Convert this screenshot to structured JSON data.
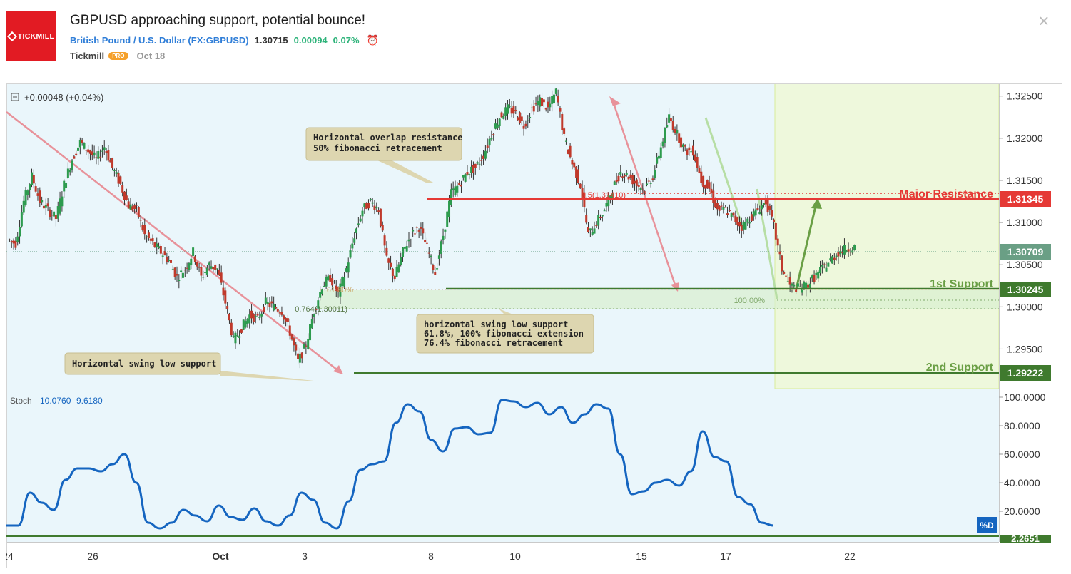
{
  "header": {
    "logo_text": "TICKMILL",
    "title": "GBPUSD approaching support, potential bounce!",
    "symbol_name": "British Pound / U.S. Dollar",
    "symbol_ticker": "FX:GBPUSD",
    "price": "1.30715",
    "change": "0.00094",
    "change_pct": "0.07%",
    "author": "Tickmill",
    "author_badge": "PRO",
    "date": "Oct 18",
    "close_icon": "close-icon",
    "alarm_icon": "alarm-clock-icon"
  },
  "legend": {
    "change_text": "+0.00048 (+0.04%)",
    "stoch_label": "Stoch",
    "stoch_k": "10.0760",
    "stoch_d": "9.6180",
    "pd_label": "%D"
  },
  "colors": {
    "background": "#eaf6fb",
    "forecast_zone": "#eef8dc",
    "resistance": "#e53935",
    "support": "#3f7a2e",
    "candle_up": "#2d9b4e",
    "candle_down": "#c0392b",
    "stoch_line": "#1565c0"
  },
  "annotations": {
    "resistance_note_1": "Horizontal overlap resistance",
    "resistance_note_2": "50% fibonacci retracement",
    "support1_note_1": "horizontal swing low support",
    "support1_note_2": "61.8%, 100% fibonacci extension",
    "support1_note_3": "76.4% fibonacci retracement",
    "support2_note": "Horizontal swing low support",
    "major_resistance": "Major Resistance",
    "first_support": "1st Support",
    "second_support": "2nd Support",
    "fib_50": "0.5(1.31410)",
    "fib_618": "61.80%",
    "fib_764": "0.764(1.30011)",
    "fib_100": "100.00%"
  },
  "chart_data": {
    "type": "candlestick",
    "symbol": "GBPUSD",
    "price_axis": [
      "1.32500",
      "1.32000",
      "1.31500",
      "1.31000",
      "1.30500",
      "1.30000",
      "1.29500"
    ],
    "price_axis_values": [
      1.325,
      1.32,
      1.315,
      1.31,
      1.305,
      1.3,
      1.295
    ],
    "ylim": [
      1.2903,
      1.3265
    ],
    "date_axis": [
      "24",
      "26",
      "Oct",
      "3",
      "8",
      "10",
      "15",
      "17",
      "22"
    ],
    "levels": {
      "major_resistance": 1.31345,
      "first_support": 1.30245,
      "second_support": 1.29222,
      "current_price": 1.30709
    },
    "level_labels": {
      "major_resistance": "1.31345",
      "first_support": "1.30245",
      "second_support": "1.29222",
      "current_price": "1.30709"
    },
    "close_path": [
      1.308,
      1.3075,
      1.3125,
      1.3155,
      1.3125,
      1.3115,
      1.3105,
      1.3145,
      1.3175,
      1.3195,
      1.3185,
      1.3175,
      1.319,
      1.3165,
      1.3145,
      1.312,
      1.3115,
      1.3085,
      1.3075,
      1.3065,
      1.3055,
      1.3035,
      1.3045,
      1.3065,
      1.3035,
      1.305,
      1.3045,
      1.3005,
      1.296,
      1.2975,
      1.299,
      1.2985,
      1.3005,
      1.3,
      1.2995,
      1.297,
      1.2935,
      1.2955,
      1.2995,
      1.3025,
      1.3035,
      1.3015,
      1.3045,
      1.3085,
      1.3115,
      1.3125,
      1.3115,
      1.3055,
      1.3035,
      1.3065,
      1.3085,
      1.3095,
      1.307,
      1.304,
      1.3085,
      1.3135,
      1.3145,
      1.316,
      1.3165,
      1.318,
      1.3205,
      1.3225,
      1.3235,
      1.323,
      1.3215,
      1.3235,
      1.3245,
      1.3235,
      1.3255,
      1.32,
      1.317,
      1.3145,
      1.3085,
      1.31,
      1.3115,
      1.314,
      1.316,
      1.3155,
      1.3145,
      1.314,
      1.3155,
      1.319,
      1.3225,
      1.3205,
      1.3185,
      1.3185,
      1.315,
      1.314,
      1.3115,
      1.3115,
      1.3105,
      1.3095,
      1.3105,
      1.3115,
      1.3125,
      1.3095,
      1.3045,
      1.3025,
      1.3022,
      1.3025,
      1.3035,
      1.3045,
      1.3055,
      1.3065,
      1.3069,
      1.3071
    ],
    "stochastic": {
      "axis": [
        "100.0000",
        "80.0000",
        "60.0000",
        "40.0000",
        "20.0000"
      ],
      "axis_values": [
        100,
        80,
        60,
        40,
        20
      ],
      "lower_level": "2.2651",
      "lower_level_value": 2.2651,
      "ylim": [
        0,
        100
      ],
      "d_values": [
        10,
        10,
        33,
        26,
        21,
        42,
        50,
        50,
        48,
        53,
        60,
        40,
        12,
        8,
        12,
        21,
        17,
        13,
        24,
        16,
        14,
        22,
        13,
        10,
        17,
        33,
        28,
        12,
        8,
        27,
        49,
        53,
        55,
        82,
        95,
        90,
        70,
        62,
        78,
        79,
        74,
        75,
        98,
        97,
        93,
        96,
        88,
        93,
        82,
        88,
        95,
        92,
        60,
        32,
        34,
        40,
        42,
        38,
        48,
        76,
        58,
        55,
        30,
        25,
        12,
        10
      ]
    }
  }
}
